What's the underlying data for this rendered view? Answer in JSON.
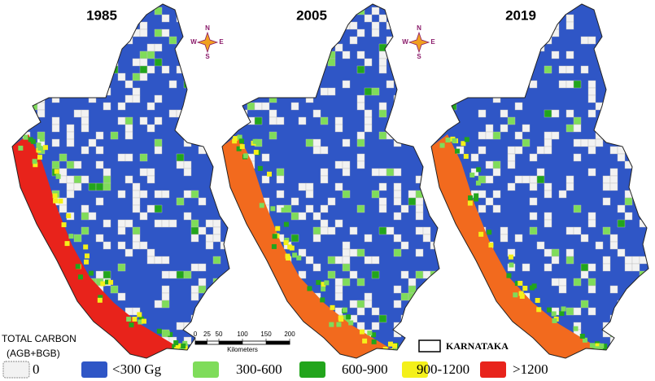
{
  "panels": [
    {
      "year": "1985",
      "coast_color": "#e8231b"
    },
    {
      "year": "2005",
      "coast_color": "#f26a1e"
    },
    {
      "year": "2019",
      "coast_color": "#f26a1e"
    }
  ],
  "compass": {
    "north": "N",
    "south": "S",
    "east": "E",
    "west": "W"
  },
  "scale_bar": {
    "ticks": [
      0,
      25,
      50,
      100,
      150,
      200
    ],
    "unit": "Kilometers"
  },
  "boundary_label": "KARNATAKA",
  "legend": {
    "title_lines": [
      "TOTAL CARBON",
      "(AGB+BGB)"
    ],
    "items": [
      {
        "label": "0",
        "color": "#f2f2f2"
      },
      {
        "label": "<300 Gg",
        "color": "#2f56c6"
      },
      {
        "label": "300-600",
        "color": "#7fdc5a"
      },
      {
        "label": "600-900",
        "color": "#22a51c"
      },
      {
        "label": "900-1200",
        "color": "#f4f01a"
      },
      {
        "label": ">1200",
        "color": "#e8231b"
      }
    ]
  }
}
